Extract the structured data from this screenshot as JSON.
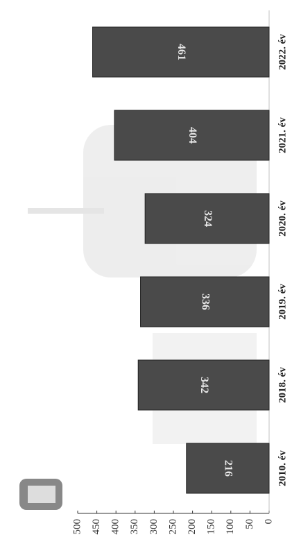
{
  "chart_data": {
    "type": "bar",
    "orientation": "horizontal",
    "categories": [
      "2010. év",
      "2018. év",
      "2019. év",
      "2020. év",
      "2021. év",
      "2022. év"
    ],
    "values": [
      216,
      342,
      336,
      324,
      404,
      461
    ],
    "color": "#4a4a4a",
    "ylim": [
      0,
      500
    ],
    "yticks": [
      0,
      50,
      100,
      150,
      200,
      250,
      300,
      350,
      400,
      450,
      500
    ]
  }
}
